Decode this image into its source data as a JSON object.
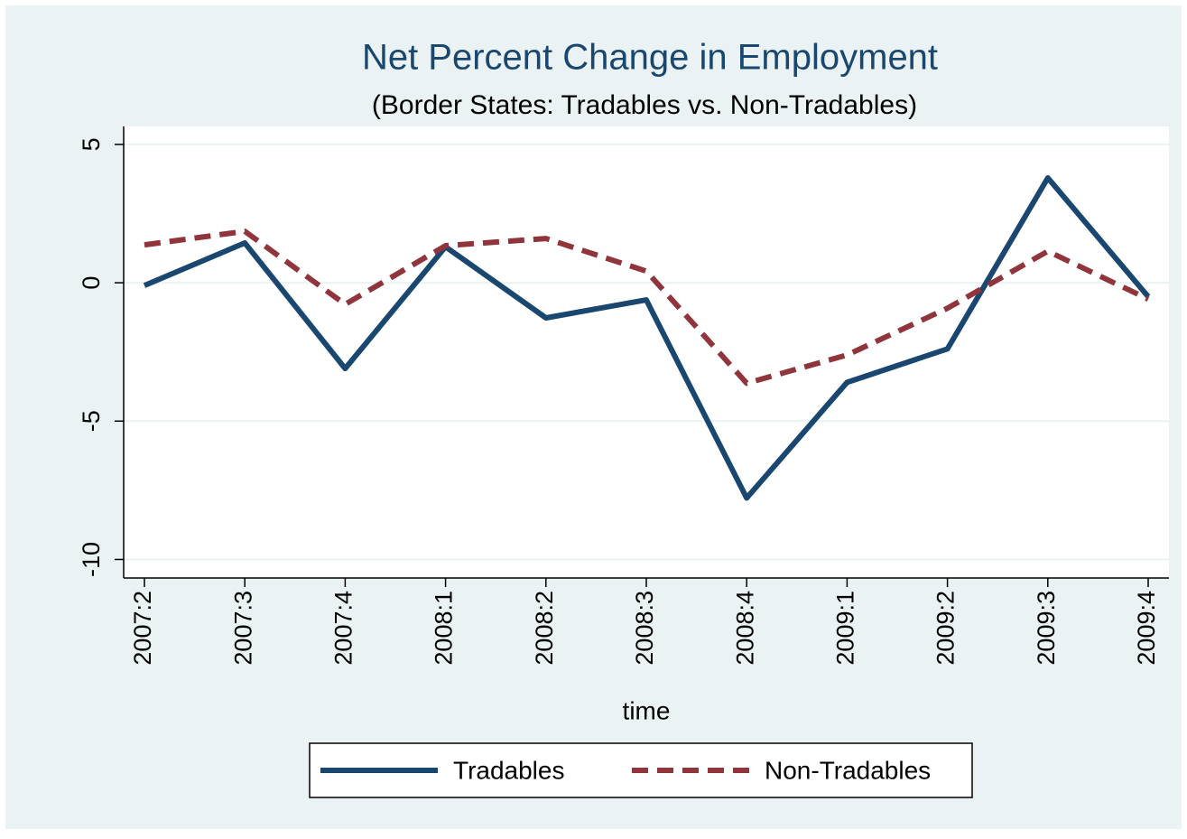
{
  "chart_data": {
    "type": "line",
    "title": "Net Percent Change in Employment",
    "subtitle": "(Border States: Tradables vs. Non-Tradables)",
    "x_label": "time",
    "categories": [
      "2007:2",
      "2007:3",
      "2007:4",
      "2008:1",
      "2008:2",
      "2008:3",
      "2008:4",
      "2009:1",
      "2009:2",
      "2009:3",
      "2009:4"
    ],
    "series": [
      {
        "name": "Tradables",
        "color": "#1a476f",
        "dash": "solid",
        "values": [
          -0.1,
          1.44,
          -3.1,
          1.3,
          -1.27,
          -0.62,
          -7.78,
          -3.6,
          -2.39,
          3.79,
          -0.5
        ]
      },
      {
        "name": "Non-Tradables",
        "color": "#90353b",
        "dash": "dashed",
        "values": [
          1.37,
          1.86,
          -0.78,
          1.34,
          1.6,
          0.42,
          -3.63,
          -2.61,
          -0.92,
          1.14,
          -0.59
        ]
      }
    ],
    "ylim": [
      -10.67,
      5.65
    ],
    "yticks": [
      -10,
      -5,
      0,
      5
    ],
    "grid": true,
    "legend": "bottom"
  }
}
